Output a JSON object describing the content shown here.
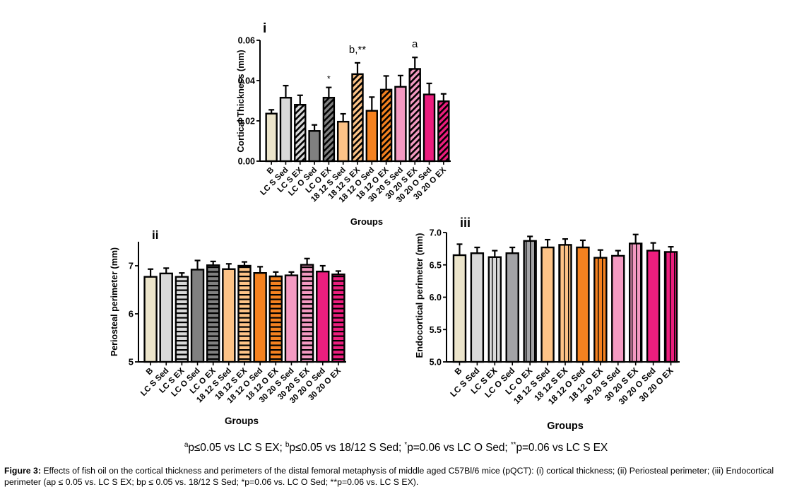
{
  "groups": [
    "B",
    "LC S Sed",
    "LC S EX",
    "LC O Sed",
    "LC O EX",
    "18 12 S Sed",
    "18 12 S EX",
    "18 12 O Sed",
    "18 12 O EX",
    "30 20 S Sed",
    "30 20 S EX",
    "30 20 O Sed",
    "30 20 O EX"
  ],
  "colors": {
    "B": "#ECE5CB",
    "LC S": "#D9D9D9",
    "LC O": "#808080",
    "LC O iii": "#A3A3A6",
    "18 12 S": "#FDC387",
    "18 12 O": "#F58220",
    "30 20 S": "#F49AC2",
    "30 20 O": "#EC1E7E"
  },
  "chart_data": [
    {
      "id": "i",
      "type": "bar",
      "panel_label": "i",
      "title": "",
      "xlabel": "Groups",
      "ylabel": "Cortical Thickness (mm)",
      "ylim": [
        0,
        0.06
      ],
      "yticks": [
        0.0,
        0.02,
        0.04,
        0.06
      ],
      "ytick_labels": [
        "0.00",
        "0.02",
        "0.04",
        "0.06"
      ],
      "ex_pattern": "diagonal",
      "categories": [
        "B",
        "LC S Sed",
        "LC S EX",
        "LC O Sed",
        "LC O EX",
        "18 12 S Sed",
        "18 12 S EX",
        "18 12 O Sed",
        "18 12 O EX",
        "30 20 S Sed",
        "30 20 S EX",
        "30 20 O Sed",
        "30 20 O EX"
      ],
      "values": [
        0.0236,
        0.0315,
        0.028,
        0.015,
        0.0315,
        0.0196,
        0.0432,
        0.025,
        0.0355,
        0.0369,
        0.0458,
        0.0331,
        0.0297
      ],
      "error_upper": [
        0.0255,
        0.0375,
        0.0327,
        0.018,
        0.0366,
        0.0235,
        0.0488,
        0.0318,
        0.0423,
        0.0425,
        0.0515,
        0.0386,
        0.0334
      ],
      "annotations": [
        {
          "category": "LC O EX",
          "text": "*"
        },
        {
          "category": "18 12 S EX",
          "text": "b,**"
        },
        {
          "category": "30 20 S EX",
          "text": "a"
        }
      ],
      "grid": false,
      "legend": "none"
    },
    {
      "id": "ii",
      "type": "bar",
      "panel_label": "ii",
      "title": "",
      "xlabel": "Groups",
      "ylabel": "Periosteal perimeter (mm)",
      "ylim": [
        5,
        7.5
      ],
      "yticks": [
        5,
        6,
        7
      ],
      "ytick_labels": [
        "5",
        "6",
        "7"
      ],
      "ex_pattern": "horizontal",
      "categories": [
        "B",
        "LC S Sed",
        "LC S EX",
        "LC O Sed",
        "LC O EX",
        "18 12 S Sed",
        "18 12 S EX",
        "18 12 O Sed",
        "18 12 O EX",
        "30 20 S Sed",
        "30 20 S EX",
        "30 20 O Sed",
        "30 20 O EX"
      ],
      "values": [
        6.77,
        6.84,
        6.77,
        6.92,
        7.01,
        6.93,
        7.0,
        6.85,
        6.78,
        6.8,
        7.02,
        6.88,
        6.82
      ],
      "error_upper": [
        6.93,
        6.95,
        6.85,
        7.11,
        7.09,
        7.04,
        7.08,
        6.98,
        6.87,
        6.87,
        7.15,
        7.0,
        6.89
      ],
      "annotations": [],
      "grid": false,
      "legend": "none"
    },
    {
      "id": "iii",
      "type": "bar",
      "panel_label": "iii",
      "title": "",
      "xlabel": "Groups",
      "ylabel": "Endocortical perimeter (mm)",
      "ylim": [
        5.0,
        7.0
      ],
      "yticks": [
        5.0,
        5.5,
        6.0,
        6.5,
        7.0
      ],
      "ytick_labels": [
        "5.0",
        "5.5",
        "6.0",
        "6.5",
        "7.0"
      ],
      "ex_pattern": "vertical",
      "categories": [
        "B",
        "LC S Sed",
        "LC S EX",
        "LC O Sed",
        "LC O EX",
        "18 12 S Sed",
        "18 12 S EX",
        "18 12 O Sed",
        "18 12 O EX",
        "30 20 S Sed",
        "30 20 S EX",
        "30 20 O Sed",
        "30 20 O EX"
      ],
      "values": [
        6.65,
        6.68,
        6.62,
        6.68,
        6.87,
        6.77,
        6.81,
        6.77,
        6.61,
        6.64,
        6.83,
        6.72,
        6.7
      ],
      "error_upper": [
        6.82,
        6.77,
        6.72,
        6.77,
        6.94,
        6.89,
        6.9,
        6.88,
        6.73,
        6.72,
        6.97,
        6.84,
        6.78
      ],
      "annotations": [],
      "grid": false,
      "legend": "none"
    }
  ],
  "footnote": {
    "a_sup": "a",
    "a_text": "p≤0.05 vs LC S EX; ",
    "b_sup": "b",
    "b_text": "p≤0.05 vs 18/12 S Sed;  ",
    "star_sup": "*",
    "star_text": "p=0.06 vs LC O Sed; ",
    "dstar_sup": "**",
    "dstar_text": "p=0.06 vs LC S EX"
  },
  "caption": {
    "label": "Figure 3:",
    "text": " Effects of fish oil on the cortical thickness and perimeters of the distal femoral metaphysis of middle aged C57Bl/6 mice (pQCT): (i) cortical thickness; (ii) Periosteal perimeter; (iii) Endocortical perimeter (ap ≤ 0.05 vs. LC S EX; bp ≤ 0.05 vs. 18/12 S Sed; *p=0.06 vs. LC O Sed; **p=0.06 vs. LC S EX)."
  }
}
